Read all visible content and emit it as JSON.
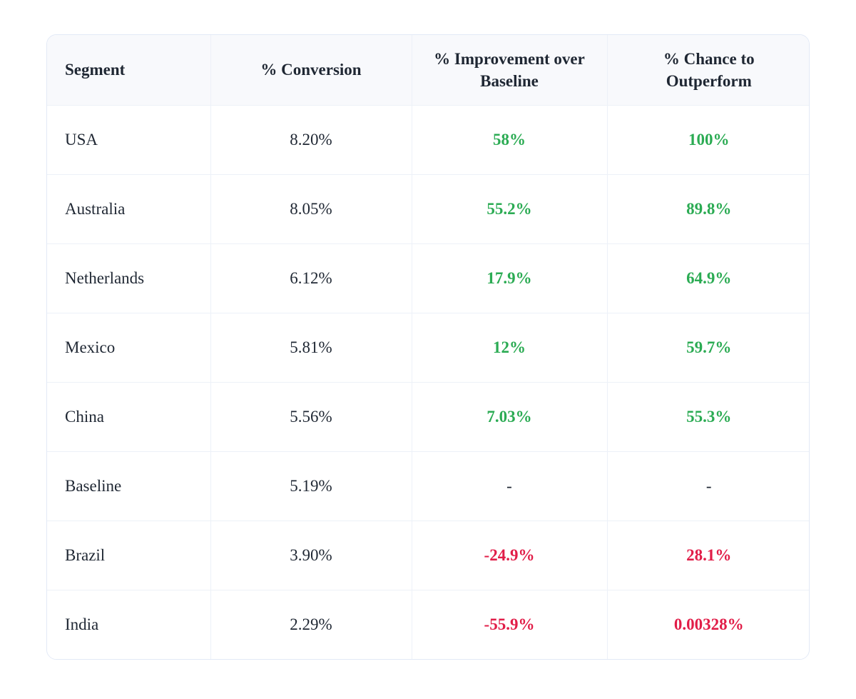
{
  "chart_data": {
    "type": "table",
    "columns": [
      "Segment",
      "% Conversion",
      "% Improvement over Baseline",
      "% Chance to Outperform"
    ],
    "rows": [
      {
        "cells": [
          "USA",
          "8.20%",
          "58%",
          "100%"
        ],
        "trend": "positive"
      },
      {
        "cells": [
          "Australia",
          "8.05%",
          "55.2%",
          "89.8%"
        ],
        "trend": "positive"
      },
      {
        "cells": [
          "Netherlands",
          "6.12%",
          "17.9%",
          "64.9%"
        ],
        "trend": "positive"
      },
      {
        "cells": [
          "Mexico",
          "5.81%",
          "12%",
          "59.7%"
        ],
        "trend": "positive"
      },
      {
        "cells": [
          "China",
          "5.56%",
          "7.03%",
          "55.3%"
        ],
        "trend": "positive"
      },
      {
        "cells": [
          "Baseline",
          "5.19%",
          "-",
          "-"
        ],
        "trend": "neutral"
      },
      {
        "cells": [
          "Brazil",
          "3.90%",
          "-24.9%",
          "28.1%"
        ],
        "trend": "negative"
      },
      {
        "cells": [
          "India",
          "2.29%",
          "-55.9%",
          "0.00328%"
        ],
        "trend": "negative"
      }
    ],
    "colors": {
      "positive": "#2bab53",
      "negative": "#e11d48",
      "text": "#1f2733",
      "header_bg": "#f8f9fc",
      "grid": "#edf1f8",
      "card_border": "#e2e9f6",
      "page_bg": "#ffffff"
    },
    "title": "",
    "legend": "none",
    "notes": "Green = positive improvement over baseline, red = negative; Baseline row shows dashes"
  }
}
